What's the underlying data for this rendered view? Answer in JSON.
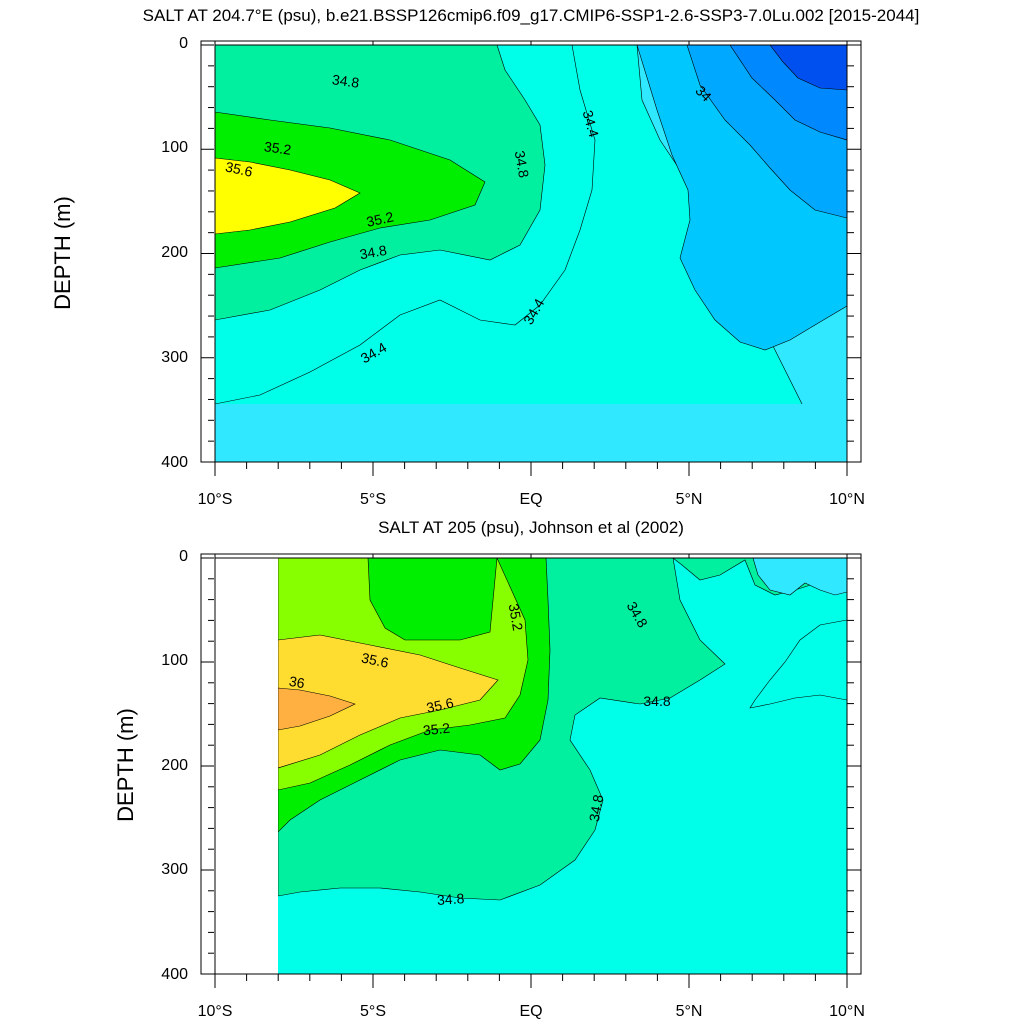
{
  "chart_data": [
    {
      "type": "heatmap",
      "subtype": "filled-contour",
      "title": "SALT AT 204.7°E (psu), b.e21.BSSP126cmip6.f09_g17.CMIP6-SSP1-2.6-SSP3-7.0Lu.002 [2015-2044]",
      "xlabel": "",
      "ylabel": "DEPTH (m)",
      "xlim": [
        -10,
        10
      ],
      "ylim": [
        0,
        400
      ],
      "y_reversed": true,
      "x_ticks": [
        -10,
        -5,
        0,
        5,
        10
      ],
      "x_tick_labels": [
        "10°S",
        "5°S",
        "EQ",
        "5°N",
        "10°N"
      ],
      "y_ticks": [
        0,
        100,
        200,
        300,
        400
      ],
      "y_tick_labels": [
        "0",
        "100",
        "200",
        "300",
        "400"
      ],
      "contour_labels": [
        "34.8",
        "35.2",
        "35.6",
        "35.2",
        "34.8",
        "34.4",
        "34.8",
        "34.4",
        "34.4",
        "34"
      ],
      "data_x_start": -10,
      "bands": [
        {
          "level_min": 35.6,
          "level_max": 35.8,
          "color": "#ffff00",
          "core": {
            "x": -10,
            "y": 150
          },
          "x_max": -8.6,
          "depth_top": 112,
          "depth_bottom": 186
        },
        {
          "level_min": 35.2,
          "level_max": 35.6,
          "color": "#00ee00",
          "core": {
            "x": -10,
            "y": 150
          },
          "x_max": -1.5,
          "depth_top": 87,
          "depth_bottom": 223
        },
        {
          "level_min": 34.8,
          "level_max": 35.2,
          "color": "#00f0a0",
          "core": {
            "x": -10,
            "y": 140
          },
          "x_max": 0.6,
          "depth_top": 0,
          "depth_bottom": 276
        },
        {
          "level_min": 34.4,
          "level_max": 34.8,
          "color": "#00ffe8",
          "core": {
            "x": -10,
            "y": 200
          },
          "x_max": 3.4,
          "depth_top": 0,
          "depth_bottom": 362
        },
        {
          "level_min": 34.2,
          "level_max": 34.4,
          "color": "#30e8ff",
          "core": {
            "x": 6,
            "y": 250
          },
          "x_max": 10,
          "depth_top": 0,
          "depth_bottom": 400
        },
        {
          "level_min": 34.0,
          "level_max": 34.2,
          "color": "#00c8ff",
          "core": {
            "x": 9,
            "y": 0
          },
          "x_max": 10,
          "depth_top": 0,
          "depth_bottom": 250
        },
        {
          "level_min": 33.8,
          "level_max": 34.0,
          "color": "#00a8ff",
          "core": {
            "x": 10,
            "y": 0
          },
          "x_max": 10,
          "depth_top": 0,
          "depth_bottom": 128
        },
        {
          "level_min": 33.6,
          "level_max": 33.8,
          "color": "#0088ff",
          "core": {
            "x": 10,
            "y": 0
          },
          "x_max": 10,
          "depth_top": 0,
          "depth_bottom": 90
        },
        {
          "level_min": 33.4,
          "level_max": 33.6,
          "color": "#0050f0",
          "core": {
            "x": 10,
            "y": 0
          },
          "x_max": 10,
          "depth_top": 0,
          "depth_bottom": 45
        }
      ]
    },
    {
      "type": "heatmap",
      "subtype": "filled-contour",
      "title": "SALT AT 205 (psu), Johnson et al (2002)",
      "xlabel": "",
      "ylabel": "DEPTH (m)",
      "xlim": [
        -10,
        10
      ],
      "ylim": [
        0,
        400
      ],
      "y_reversed": true,
      "x_ticks": [
        -10,
        -5,
        0,
        5,
        10
      ],
      "x_tick_labels": [
        "10°S",
        "5°S",
        "EQ",
        "5°N",
        "10°N"
      ],
      "y_ticks": [
        0,
        100,
        200,
        300,
        400
      ],
      "y_tick_labels": [
        "0",
        "100",
        "200",
        "300",
        "400"
      ],
      "contour_labels": [
        "35.2",
        "34.8",
        "35.6",
        "36",
        "35.6",
        "35.2",
        "34.8",
        "34.8",
        "34.8"
      ],
      "data_x_start": -8,
      "bands": [
        {
          "level_min": 36.0,
          "level_max": 36.2,
          "color": "#ffb040",
          "core": {
            "x": -8,
            "y": 145
          },
          "x_max": -6.2,
          "depth_top": 120,
          "depth_bottom": 172
        },
        {
          "level_min": 35.6,
          "level_max": 36.0,
          "color": "#ffdd30",
          "core": {
            "x": -8,
            "y": 140
          },
          "x_max": -1.0,
          "depth_top": 78,
          "depth_bottom": 205
        },
        {
          "level_min": 35.4,
          "level_max": 35.6,
          "color": "#88ff00",
          "core": {
            "x": -8,
            "y": 100
          },
          "x_max": -1.0,
          "depth_top": 0,
          "depth_bottom": 228
        },
        {
          "level_min": 35.2,
          "level_max": 35.4,
          "color": "#00ee00",
          "core": {
            "x": -4,
            "y": 120
          },
          "x_max": -0.4,
          "depth_top": 0,
          "depth_bottom": 245
        },
        {
          "level_min": 34.8,
          "level_max": 35.2,
          "color": "#00f0a0",
          "core": {
            "x": -3,
            "y": 150
          },
          "x_max": 6.0,
          "depth_top": 0,
          "depth_bottom": 330
        },
        {
          "level_min": 34.6,
          "level_max": 34.8,
          "color": "#00ffe8",
          "core": {
            "x": 5,
            "y": 300
          },
          "x_max": 10,
          "depth_top": 0,
          "depth_bottom": 400
        },
        {
          "level_min": 34.4,
          "level_max": 34.6,
          "color": "#30e8ff",
          "core": {
            "x": 9,
            "y": 10
          },
          "x_max": 10,
          "depth_top": 0,
          "depth_bottom": 40
        }
      ]
    }
  ]
}
